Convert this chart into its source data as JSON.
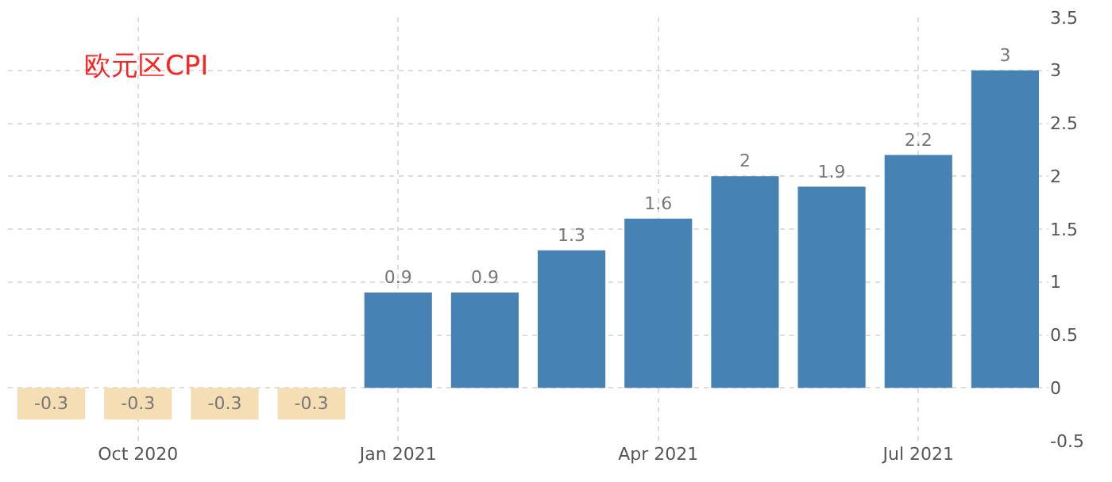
{
  "chart_data": {
    "type": "bar",
    "title": "欧元区CPI",
    "categories": [
      null,
      "Oct 2020",
      null,
      null,
      "Jan 2021",
      null,
      null,
      "Apr 2021",
      null,
      null,
      "Jul 2021",
      null
    ],
    "values": [
      -0.3,
      -0.3,
      -0.3,
      -0.3,
      0.9,
      0.9,
      1.3,
      1.6,
      2,
      1.9,
      2.2,
      3
    ],
    "colors": [
      "#f5deb3",
      "#f5deb3",
      "#f5deb3",
      "#f5deb3",
      "#4682b4",
      "#4682b4",
      "#4682b4",
      "#4682b4",
      "#4682b4",
      "#4682b4",
      "#4682b4",
      "#4682b4"
    ],
    "ylim": [
      -0.5,
      3.5
    ],
    "yticks": [
      -0.5,
      0,
      0.5,
      1,
      1.5,
      2,
      2.5,
      3,
      3.5
    ],
    "grid": true,
    "data_labels": true
  }
}
